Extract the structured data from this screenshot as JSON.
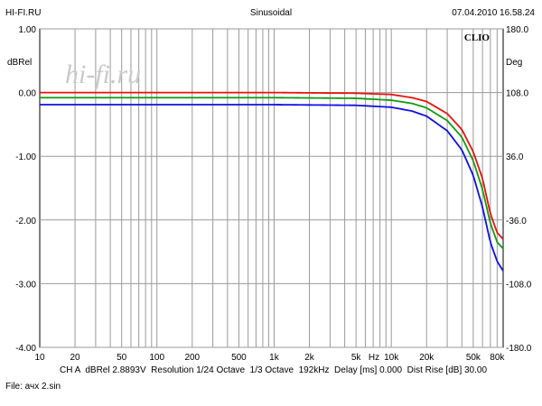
{
  "header": {
    "left": "HI-FI.RU",
    "center": "Sinusoidal",
    "right": "07.04.2010 16.58.24"
  },
  "watermark": "hi-fi.ru",
  "brand": "CLIO",
  "footer": {
    "line1": "CH A  dBRel 2.8893V  Resolution 1/24 Octave  1/3 Octave  192kHz  Delay [ms] 0.000  Dist Rise [dB] 30.00",
    "line2": "File: ачх 2.sin"
  },
  "chart_data": {
    "type": "line",
    "title": "Sinusoidal",
    "xlabel": "Hz",
    "ylabel": "dBRel",
    "y2label": "Deg",
    "xscale": "log",
    "xlim": [
      10,
      90000
    ],
    "ylim": [
      -4.0,
      1.0
    ],
    "y2lim": [
      -180.0,
      180.0
    ],
    "grid": true,
    "x_ticks": [
      10,
      20,
      50,
      100,
      200,
      500,
      1000,
      2000,
      5000,
      10000,
      20000,
      50000,
      80000
    ],
    "x_tick_labels": [
      "10",
      "20",
      "50",
      "100",
      "200",
      "500",
      "1k",
      "2k",
      "5k",
      "10k",
      "20k",
      "50k",
      "80k"
    ],
    "y_ticks": [
      1.0,
      0.0,
      -1.0,
      -2.0,
      -3.0,
      -4.0
    ],
    "y_tick_labels": [
      "1.00",
      "0.00",
      "-1.00",
      "-2.00",
      "-3.00",
      "-4.00"
    ],
    "y2_ticks": [
      180.0,
      108.0,
      36.0,
      -36.0,
      -108.0,
      -180.0
    ],
    "y2_tick_labels": [
      "180.0",
      "108.0",
      "36.0",
      "-36.0",
      "-108.0",
      "-180.0"
    ],
    "series": [
      {
        "color": "#e8120c",
        "x": [
          10,
          1000,
          5000,
          10000,
          15000,
          20000,
          30000,
          40000,
          50000,
          60000,
          70000,
          80000,
          90000
        ],
        "y": [
          0.0,
          0.0,
          -0.01,
          -0.03,
          -0.08,
          -0.14,
          -0.33,
          -0.58,
          -0.93,
          -1.35,
          -1.9,
          -2.2,
          -2.3
        ]
      },
      {
        "color": "#129a12",
        "x": [
          10,
          1000,
          5000,
          10000,
          15000,
          20000,
          30000,
          40000,
          50000,
          60000,
          70000,
          80000,
          90000
        ],
        "y": [
          -0.08,
          -0.08,
          -0.09,
          -0.12,
          -0.17,
          -0.24,
          -0.44,
          -0.7,
          -1.07,
          -1.52,
          -2.05,
          -2.35,
          -2.45
        ]
      },
      {
        "color": "#1010e0",
        "x": [
          10,
          1000,
          5000,
          10000,
          15000,
          20000,
          30000,
          40000,
          50000,
          60000,
          70000,
          80000,
          90000
        ],
        "y": [
          -0.19,
          -0.19,
          -0.2,
          -0.23,
          -0.29,
          -0.37,
          -0.6,
          -0.9,
          -1.3,
          -1.8,
          -2.35,
          -2.65,
          -2.8
        ]
      }
    ]
  }
}
